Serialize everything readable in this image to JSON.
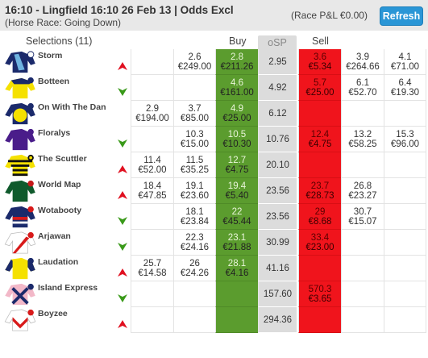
{
  "header": {
    "title": "16:10 - Lingfield 16:10 26 Feb 13 | Odds Excl",
    "subtitle": "(Horse Race: Going Down)",
    "pl": "(Race P&L €0.00)",
    "refresh_label": "Refresh"
  },
  "columns": {
    "selections": "Selections (11)",
    "buy": "Buy",
    "osp": "oSP",
    "sell": "Sell"
  },
  "colors": {
    "buy_best": "#5b9c2e",
    "sell_best": "#f0141c",
    "osp_bg": "#dcdcdc",
    "arrow_up": "#e01020",
    "arrow_down": "#3a9a1a",
    "refresh": "#2a96d6"
  },
  "runners": [
    {
      "name": "Storm",
      "trend": "up",
      "silk": "navy-light-blue-stars",
      "b3": [
        "",
        ""
      ],
      "b2": [
        "2.6",
        "€249.00"
      ],
      "b1": [
        "2.8",
        "€211.26"
      ],
      "osp": "2.95",
      "s1": [
        "3.6",
        "€5.34"
      ],
      "s2": [
        "3.9",
        "€264.66"
      ],
      "s3": [
        "4.1",
        "€71.00"
      ]
    },
    {
      "name": "Botteen",
      "trend": "down",
      "silk": "yellow-navy-cap",
      "b3": [
        "",
        ""
      ],
      "b2": [
        "",
        ""
      ],
      "b1": [
        "4.6",
        "€161.00"
      ],
      "osp": "4.92",
      "s1": [
        "5.7",
        "€25.00"
      ],
      "s2": [
        "6.1",
        "€52.70"
      ],
      "s3": [
        "6.4",
        "€19.30"
      ]
    },
    {
      "name": "On With The Dan",
      "trend": "none",
      "silk": "navy-yellow-blob",
      "b3": [
        "2.9",
        "€194.00"
      ],
      "b2": [
        "3.7",
        "€85.00"
      ],
      "b1": [
        "4.9",
        "€25.00"
      ],
      "osp": "6.12",
      "s1": [
        "",
        ""
      ],
      "s2": [
        "",
        ""
      ],
      "s3": [
        "",
        ""
      ]
    },
    {
      "name": "Floralys",
      "trend": "down",
      "silk": "purple",
      "b3": [
        "",
        ""
      ],
      "b2": [
        "10.3",
        "€15.00"
      ],
      "b1": [
        "10.5",
        "€10.30"
      ],
      "osp": "10.76",
      "s1": [
        "12.4",
        "€4.75"
      ],
      "s2": [
        "13.2",
        "€58.25"
      ],
      "s3": [
        "15.3",
        "€96.00"
      ]
    },
    {
      "name": "The Scuttler",
      "trend": "up",
      "silk": "yellow-black-hoops",
      "b3": [
        "11.4",
        "€52.00"
      ],
      "b2": [
        "11.5",
        "€35.25"
      ],
      "b1": [
        "12.7",
        "€4.75"
      ],
      "osp": "20.10",
      "s1": [
        "",
        ""
      ],
      "s2": [
        "",
        ""
      ],
      "s3": [
        "",
        ""
      ]
    },
    {
      "name": "World Map",
      "trend": "up",
      "silk": "dark-green",
      "b3": [
        "18.4",
        "€47.85"
      ],
      "b2": [
        "19.1",
        "€23.60"
      ],
      "b1": [
        "19.4",
        "€5.40"
      ],
      "osp": "23.56",
      "s1": [
        "23.7",
        "€28.73"
      ],
      "s2": [
        "26.8",
        "€23.27"
      ],
      "s3": [
        "",
        ""
      ]
    },
    {
      "name": "Wotabooty",
      "trend": "down",
      "silk": "navy-red-hoop",
      "b3": [
        "",
        ""
      ],
      "b2": [
        "18.1",
        "€23.84"
      ],
      "b1": [
        "22",
        "€45.44"
      ],
      "osp": "23.56",
      "s1": [
        "29",
        "€8.68"
      ],
      "s2": [
        "30.7",
        "€15.07"
      ],
      "s3": [
        "",
        ""
      ]
    },
    {
      "name": "Arjawan",
      "trend": "down",
      "silk": "white-red-sash",
      "b3": [
        "",
        ""
      ],
      "b2": [
        "22.3",
        "€24.16"
      ],
      "b1": [
        "23.1",
        "€21.88"
      ],
      "osp": "30.99",
      "s1": [
        "33.4",
        "€23.00"
      ],
      "s2": [
        "",
        ""
      ],
      "s3": [
        "",
        ""
      ]
    },
    {
      "name": "Laudation",
      "trend": "up",
      "silk": "yellow-navy",
      "b3": [
        "25.7",
        "€14.58"
      ],
      "b2": [
        "26",
        "€24.26"
      ],
      "b1": [
        "28.1",
        "€4.16"
      ],
      "osp": "41.16",
      "s1": [
        "",
        ""
      ],
      "s2": [
        "",
        ""
      ],
      "s3": [
        "",
        ""
      ]
    },
    {
      "name": "Island Express",
      "trend": "down",
      "silk": "pink-navy-cross",
      "b3": [
        "",
        ""
      ],
      "b2": [
        "",
        ""
      ],
      "b1": [
        "",
        ""
      ],
      "osp": "157.60",
      "s1": [
        "570.3",
        "€3.65"
      ],
      "s2": [
        "",
        ""
      ],
      "s3": [
        "",
        ""
      ]
    },
    {
      "name": "Boyzee",
      "trend": "up",
      "silk": "white-red-chevron",
      "b3": [
        "",
        ""
      ],
      "b2": [
        "",
        ""
      ],
      "b1": [
        "",
        ""
      ],
      "osp": "294.36",
      "s1": [
        "",
        ""
      ],
      "s2": [
        "",
        ""
      ],
      "s3": [
        "",
        ""
      ]
    }
  ]
}
